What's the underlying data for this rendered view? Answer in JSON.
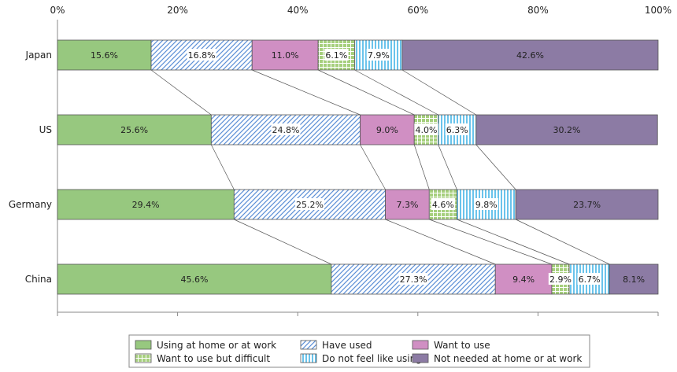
{
  "chart_data": {
    "type": "bar",
    "orientation": "horizontal",
    "stacked": "percent",
    "categories": [
      "Japan",
      "US",
      "Germany",
      "China"
    ],
    "x_ticks": [
      "0%",
      "20%",
      "40%",
      "60%",
      "80%",
      "100%"
    ],
    "xlim": [
      0,
      100
    ],
    "grid": false,
    "legend_position": "bottom",
    "series": [
      {
        "name": "Using at home or at work",
        "values": [
          15.6,
          25.6,
          29.4,
          45.6
        ],
        "labels": [
          "15.6%",
          "25.6%",
          "29.4%",
          "45.6%"
        ],
        "color": "#97c87f",
        "pattern": "solid"
      },
      {
        "name": "Have used",
        "values": [
          16.8,
          24.8,
          25.2,
          27.3
        ],
        "labels": [
          "16.8%",
          "24.8%",
          "25.2%",
          "27.3%"
        ],
        "color": "#5b8fd6",
        "pattern": "diagonal-hatch"
      },
      {
        "name": "Want to use",
        "values": [
          11.0,
          9.0,
          7.3,
          9.4
        ],
        "labels": [
          "11.0%",
          "9.0%",
          "7.3%",
          "9.4%"
        ],
        "color": "#d08fc3",
        "pattern": "solid"
      },
      {
        "name": "Want to use but difficult",
        "values": [
          6.1,
          4.0,
          4.6,
          2.9
        ],
        "labels": [
          "6.1%",
          "4.0%",
          "4.6%",
          "2.9%"
        ],
        "color": "#a6cf7d",
        "pattern": "grid"
      },
      {
        "name": "Do not feel like using",
        "values": [
          7.9,
          6.3,
          9.8,
          6.7
        ],
        "labels": [
          "7.9%",
          "6.3%",
          "9.8%",
          "6.7%"
        ],
        "color": "#44b4e6",
        "pattern": "vertical-lines"
      },
      {
        "name": "Not needed at home or at work",
        "values": [
          42.6,
          30.2,
          23.7,
          8.1
        ],
        "labels": [
          "42.6%",
          "30.2%",
          "23.7%",
          "8.1%"
        ],
        "color": "#8c7ba4",
        "pattern": "solid"
      }
    ]
  }
}
